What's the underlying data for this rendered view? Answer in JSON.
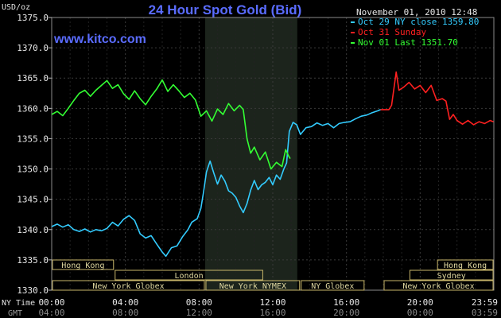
{
  "chart_data": {
    "type": "line",
    "title": "24 Hour Spot Gold (Bid)",
    "watermark": "www.kitco.com",
    "timestamp": "November 01, 2010 12:48",
    "ylabel": "USD/oz",
    "ylim": [
      1330,
      1375
    ],
    "y_ticks": [
      "1375.0",
      "1370.0",
      "1365.0",
      "1360.0",
      "1355.0",
      "1350.0",
      "1345.0",
      "1340.0",
      "1335.0",
      "1330.0"
    ],
    "xlim": [
      0,
      24
    ],
    "x_ticks_ny": [
      "00:00",
      "04:00",
      "08:00",
      "12:00",
      "16:00",
      "20:00",
      "23:59"
    ],
    "x_ticks_gmt": [
      "04:00",
      "08:00",
      "12:00",
      "16:00",
      "20:00",
      "00:00",
      "03:59"
    ],
    "x_axis_label_ny": "NY Time",
    "x_axis_label_gmt": "GMT",
    "grid": true,
    "legend_position": "top-right",
    "legend": [
      {
        "label": "Oct 29 NY close 1359.80",
        "color": "#33ccff"
      },
      {
        "label": "Oct 31 Sunday",
        "color": "#ff2020"
      },
      {
        "label": "Nov 01 Last 1351.70",
        "color": "#33ff33"
      }
    ],
    "highlight_range": [
      8.33,
      13.33
    ],
    "series": [
      {
        "name": "Oct 29 NY close 1359.80",
        "color": "#33ccff",
        "points": [
          [
            0.0,
            1340.5
          ],
          [
            0.3,
            1340.9
          ],
          [
            0.6,
            1340.4
          ],
          [
            0.9,
            1340.8
          ],
          [
            1.2,
            1340.0
          ],
          [
            1.5,
            1339.7
          ],
          [
            1.8,
            1340.1
          ],
          [
            2.1,
            1339.6
          ],
          [
            2.4,
            1340.0
          ],
          [
            2.7,
            1339.8
          ],
          [
            3.0,
            1340.2
          ],
          [
            3.3,
            1341.2
          ],
          [
            3.6,
            1340.6
          ],
          [
            3.9,
            1341.7
          ],
          [
            4.2,
            1342.3
          ],
          [
            4.5,
            1341.5
          ],
          [
            4.8,
            1339.3
          ],
          [
            5.1,
            1338.6
          ],
          [
            5.4,
            1339.0
          ],
          [
            5.7,
            1337.6
          ],
          [
            6.0,
            1336.3
          ],
          [
            6.2,
            1335.6
          ],
          [
            6.5,
            1337.0
          ],
          [
            6.8,
            1337.3
          ],
          [
            7.1,
            1338.8
          ],
          [
            7.4,
            1340.0
          ],
          [
            7.6,
            1341.2
          ],
          [
            7.9,
            1341.8
          ],
          [
            8.1,
            1343.5
          ],
          [
            8.25,
            1346.3
          ],
          [
            8.4,
            1349.5
          ],
          [
            8.6,
            1351.3
          ],
          [
            8.8,
            1349.3
          ],
          [
            9.0,
            1347.5
          ],
          [
            9.2,
            1349.0
          ],
          [
            9.4,
            1348.0
          ],
          [
            9.6,
            1346.4
          ],
          [
            9.8,
            1346.0
          ],
          [
            10.0,
            1345.3
          ],
          [
            10.2,
            1343.9
          ],
          [
            10.4,
            1342.8
          ],
          [
            10.6,
            1344.3
          ],
          [
            10.8,
            1346.5
          ],
          [
            11.0,
            1348.1
          ],
          [
            11.2,
            1346.6
          ],
          [
            11.4,
            1347.4
          ],
          [
            11.6,
            1347.8
          ],
          [
            11.8,
            1348.6
          ],
          [
            12.0,
            1347.4
          ],
          [
            12.2,
            1349.0
          ],
          [
            12.4,
            1348.3
          ],
          [
            12.6,
            1350.0
          ],
          [
            12.75,
            1351.0
          ],
          [
            12.9,
            1356.2
          ],
          [
            13.1,
            1357.7
          ],
          [
            13.3,
            1357.3
          ],
          [
            13.5,
            1355.7
          ],
          [
            13.8,
            1356.8
          ],
          [
            14.1,
            1357.0
          ],
          [
            14.4,
            1357.6
          ],
          [
            14.7,
            1357.2
          ],
          [
            15.0,
            1357.5
          ],
          [
            15.3,
            1356.8
          ],
          [
            15.6,
            1357.5
          ],
          [
            15.9,
            1357.7
          ],
          [
            16.2,
            1357.8
          ],
          [
            16.5,
            1358.3
          ],
          [
            16.8,
            1358.7
          ],
          [
            17.1,
            1358.9
          ],
          [
            17.4,
            1359.3
          ],
          [
            17.7,
            1359.6
          ],
          [
            17.85,
            1359.8
          ]
        ]
      },
      {
        "name": "Oct 31 Sunday",
        "color": "#ff2020",
        "points": [
          [
            17.85,
            1359.8
          ],
          [
            18.3,
            1359.8
          ],
          [
            18.45,
            1360.5
          ],
          [
            18.6,
            1363.8
          ],
          [
            18.7,
            1366.0
          ],
          [
            18.85,
            1363.0
          ],
          [
            19.1,
            1363.5
          ],
          [
            19.4,
            1364.3
          ],
          [
            19.7,
            1363.2
          ],
          [
            20.0,
            1363.8
          ],
          [
            20.3,
            1362.6
          ],
          [
            20.6,
            1363.8
          ],
          [
            20.9,
            1361.3
          ],
          [
            21.2,
            1361.6
          ],
          [
            21.4,
            1361.2
          ],
          [
            21.6,
            1358.2
          ],
          [
            21.8,
            1359.0
          ],
          [
            22.0,
            1358.0
          ],
          [
            22.3,
            1357.4
          ],
          [
            22.6,
            1358.0
          ],
          [
            22.9,
            1357.3
          ],
          [
            23.2,
            1357.8
          ],
          [
            23.5,
            1357.5
          ],
          [
            23.8,
            1358.0
          ],
          [
            23.98,
            1357.8
          ]
        ]
      },
      {
        "name": "Nov 01 Last 1351.70",
        "color": "#33ff33",
        "points": [
          [
            0.0,
            1359.0
          ],
          [
            0.3,
            1359.5
          ],
          [
            0.6,
            1358.8
          ],
          [
            0.9,
            1360.0
          ],
          [
            1.2,
            1361.3
          ],
          [
            1.5,
            1362.5
          ],
          [
            1.8,
            1363.0
          ],
          [
            2.1,
            1362.0
          ],
          [
            2.4,
            1363.0
          ],
          [
            2.7,
            1363.8
          ],
          [
            3.0,
            1364.6
          ],
          [
            3.3,
            1363.3
          ],
          [
            3.6,
            1363.9
          ],
          [
            3.9,
            1362.4
          ],
          [
            4.2,
            1361.5
          ],
          [
            4.5,
            1362.9
          ],
          [
            4.8,
            1361.6
          ],
          [
            5.1,
            1360.6
          ],
          [
            5.4,
            1362.0
          ],
          [
            5.7,
            1363.2
          ],
          [
            6.0,
            1364.7
          ],
          [
            6.3,
            1362.8
          ],
          [
            6.6,
            1363.9
          ],
          [
            6.9,
            1362.9
          ],
          [
            7.2,
            1361.8
          ],
          [
            7.5,
            1362.5
          ],
          [
            7.8,
            1361.4
          ],
          [
            8.1,
            1358.7
          ],
          [
            8.4,
            1359.6
          ],
          [
            8.7,
            1357.9
          ],
          [
            9.0,
            1359.9
          ],
          [
            9.3,
            1359.0
          ],
          [
            9.6,
            1360.8
          ],
          [
            9.9,
            1359.6
          ],
          [
            10.2,
            1360.5
          ],
          [
            10.4,
            1359.8
          ],
          [
            10.6,
            1355.0
          ],
          [
            10.8,
            1352.6
          ],
          [
            11.0,
            1353.6
          ],
          [
            11.3,
            1351.5
          ],
          [
            11.6,
            1352.8
          ],
          [
            11.9,
            1350.0
          ],
          [
            12.2,
            1351.1
          ],
          [
            12.5,
            1350.4
          ],
          [
            12.7,
            1353.2
          ],
          [
            12.85,
            1352.2
          ],
          [
            12.95,
            1351.7
          ]
        ]
      }
    ],
    "sessions": [
      {
        "label": "Hong Kong",
        "start": 0.0,
        "end": 3.4,
        "row": 0
      },
      {
        "label": "Hong Kong",
        "start": 20.9,
        "end": 24.0,
        "row": 0
      },
      {
        "label": "London",
        "start": 3.4,
        "end": 11.5,
        "row": 1
      },
      {
        "label": "Sydney",
        "start": 19.4,
        "end": 24.0,
        "row": 1
      },
      {
        "label": "New York Globex",
        "start": 0.0,
        "end": 8.33,
        "row": 2
      },
      {
        "label": "New York NYMEX",
        "start": 8.33,
        "end": 13.5,
        "row": 2
      },
      {
        "label": "NY Globex",
        "start": 13.5,
        "end": 17.0,
        "row": 2
      },
      {
        "label": "New York Globex",
        "start": 18.0,
        "end": 24.0,
        "row": 2
      }
    ]
  }
}
